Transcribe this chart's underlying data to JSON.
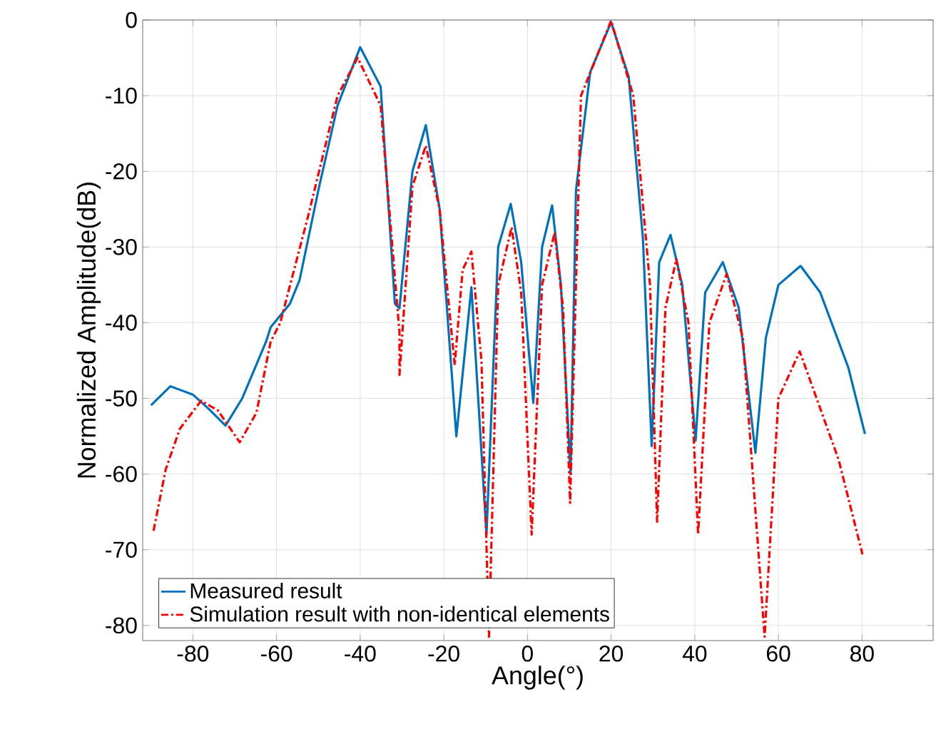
{
  "chart_data": {
    "type": "line",
    "xlabel": "Angle(°)",
    "ylabel": "Normalized Amplitude(dB)",
    "xlim": [
      -92,
      97
    ],
    "ylim": [
      -82,
      0
    ],
    "xticks": [
      -80,
      -60,
      -40,
      -20,
      0,
      20,
      40,
      60,
      80
    ],
    "yticks": [
      -80,
      -70,
      -60,
      -50,
      -40,
      -30,
      -20,
      -10,
      0
    ],
    "grid": true,
    "legend": "bottom left",
    "marker": "none",
    "series": [
      {
        "name": "Measured result",
        "color": "#0072bd",
        "line_style": "solid",
        "x": [
          -90,
          -85.4,
          -80,
          -76,
          -72.2,
          -68.2,
          -62.5,
          -61.4,
          -56.8,
          -54.5,
          -50,
          -45.4,
          -40,
          -35.1,
          -31.7,
          -30.6,
          -27.5,
          -24.3,
          -21,
          -17,
          -13.4,
          -9.8,
          -7,
          -4,
          -1.5,
          1.4,
          3.5,
          5.9,
          8,
          10.3,
          11.6,
          15,
          20,
          24.2,
          27.6,
          29.7,
          31.5,
          34.2,
          37,
          40.2,
          42.5,
          46.7,
          50.5,
          54.5,
          57,
          60,
          65.3,
          70,
          76.7,
          80.7
        ],
        "values": [
          -50.9,
          -48.4,
          -49.5,
          -51.5,
          -53.6,
          -50,
          -42.5,
          -40.6,
          -37.5,
          -34.4,
          -22.5,
          -11.3,
          -3.6,
          -8.8,
          -37.5,
          -38.1,
          -20,
          -13.9,
          -25,
          -55,
          -35.3,
          -68,
          -30,
          -24.3,
          -32,
          -50.6,
          -30,
          -24.5,
          -35,
          -60,
          -22.5,
          -6.9,
          -0.3,
          -7.5,
          -28.8,
          -56.3,
          -32,
          -28.4,
          -35,
          -55.6,
          -36,
          -32,
          -38,
          -57.2,
          -42,
          -35,
          -32.5,
          -36,
          -45.9,
          -54.7
        ]
      },
      {
        "name": "Simulation result with non-identical elements",
        "color": "#ff0000",
        "line_style": "dashdotted",
        "x": [
          -89.4,
          -86.5,
          -83.1,
          -78,
          -74,
          -68.8,
          -64.8,
          -61.4,
          -59.1,
          -52.3,
          -45.4,
          -40.6,
          -35.1,
          -30.6,
          -30.6,
          -27.5,
          -24.3,
          -21,
          -17.4,
          -15.5,
          -13.4,
          -11,
          -9.2,
          -7,
          -3.8,
          -1.5,
          1,
          3.5,
          6.5,
          8.5,
          10.2,
          12.8,
          20,
          25.3,
          29.3,
          31,
          33,
          35.6,
          38.5,
          40.8,
          43.5,
          47.6,
          51.5,
          56.7,
          60,
          65.1,
          74.4,
          80.1
        ],
        "values": [
          -67.5,
          -59.4,
          -54,
          -50.3,
          -51.6,
          -55.8,
          -51.9,
          -42.5,
          -40,
          -25.6,
          -10,
          -5,
          -11.3,
          -41.3,
          -46.9,
          -22,
          -16.6,
          -25,
          -45.6,
          -33,
          -30.6,
          -45,
          -81.5,
          -35,
          -27.4,
          -36,
          -68,
          -35,
          -28.1,
          -38,
          -63.8,
          -10,
          -0.1,
          -10,
          -35,
          -66.3,
          -38,
          -31.6,
          -40,
          -68,
          -40,
          -33.6,
          -42,
          -81.5,
          -50,
          -43.8,
          -58.1,
          -70.6
        ]
      }
    ]
  }
}
